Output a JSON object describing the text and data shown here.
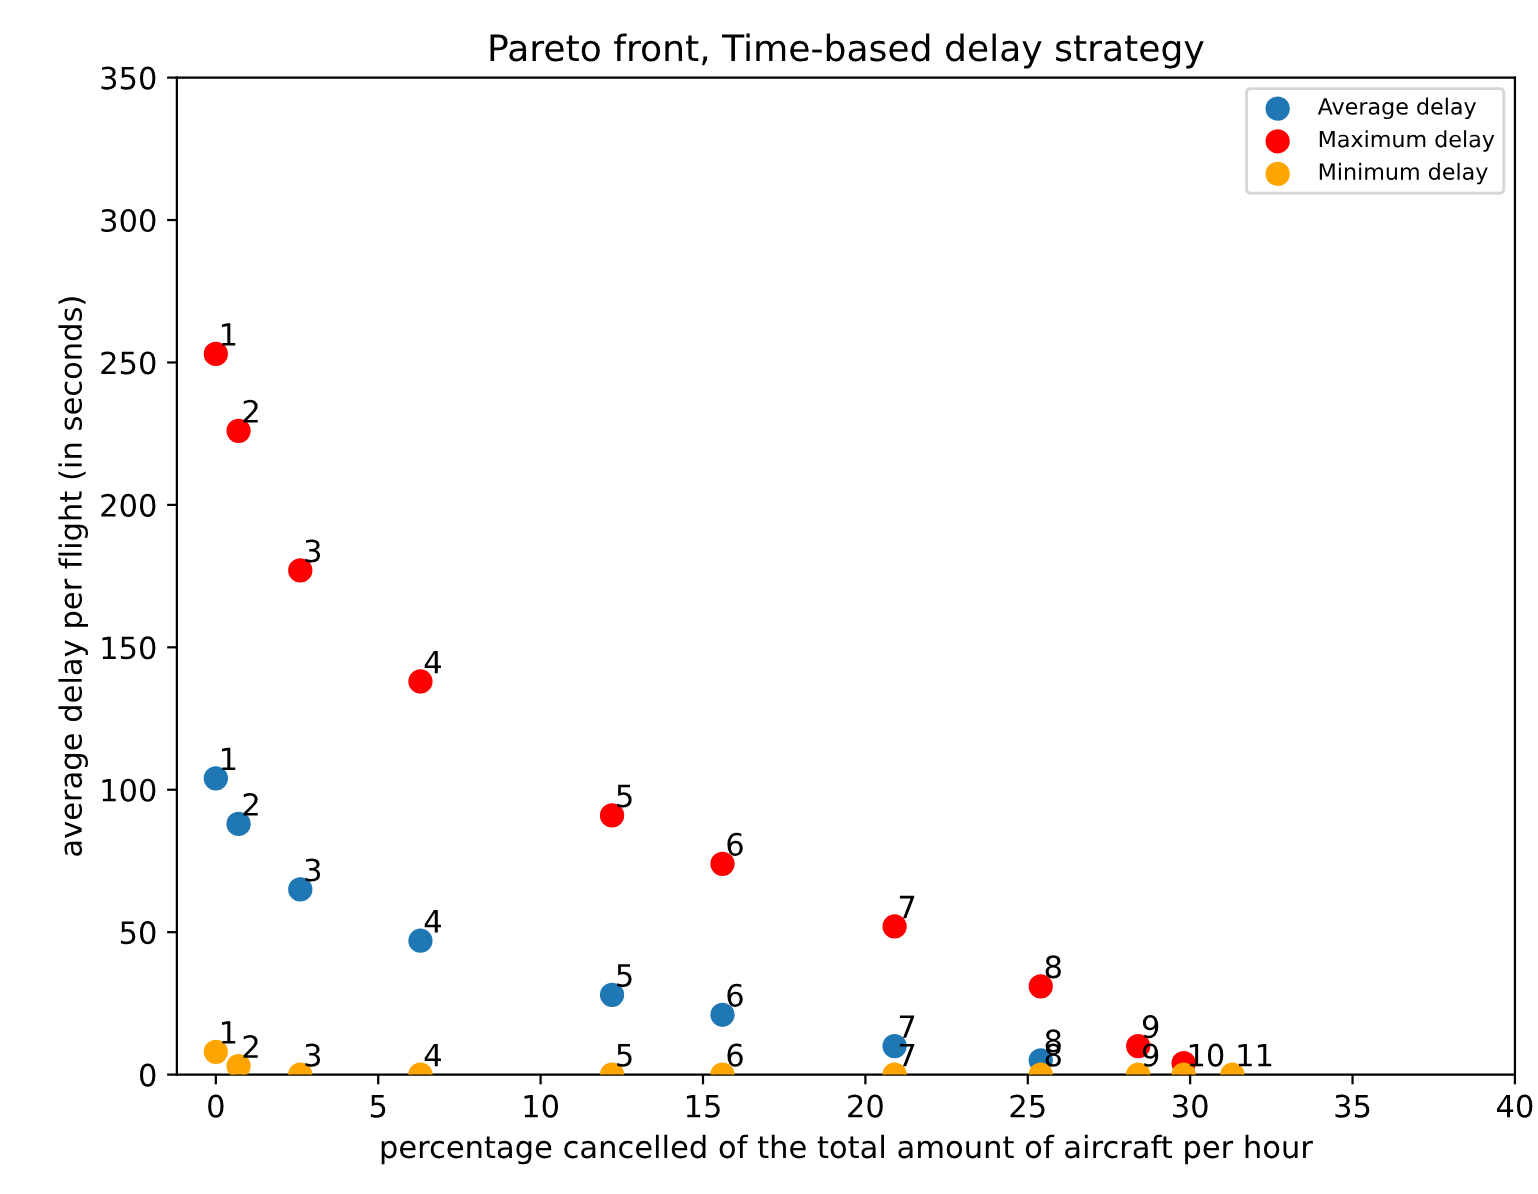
{
  "chart_data": {
    "type": "scatter",
    "title": "Pareto front, Time-based delay strategy",
    "xlabel": "percentage cancelled of the total amount of aircraft per hour",
    "ylabel": "average delay per flight (in seconds)",
    "x": [
      0,
      0.7,
      2.6,
      6.3,
      12.2,
      15.6,
      20.9,
      25.4,
      28.4,
      29.8,
      31.3
    ],
    "series": [
      {
        "name": "Average delay",
        "color": "#1f77b4",
        "values": [
          104,
          88,
          65,
          47,
          28,
          21,
          10,
          5,
          null,
          null,
          null
        ]
      },
      {
        "name": "Maximum delay",
        "color": "#ff0000",
        "values": [
          253,
          226,
          177,
          138,
          91,
          74,
          52,
          31,
          10,
          4,
          null
        ]
      },
      {
        "name": "Minimum delay",
        "color": "#ffa500",
        "values": [
          8,
          3,
          0,
          0,
          0,
          0,
          0,
          0,
          0,
          0,
          0
        ]
      }
    ],
    "annotations": [
      {
        "text": "1",
        "x": 0,
        "y": 104
      },
      {
        "text": "2",
        "x": 0.7,
        "y": 88
      },
      {
        "text": "3",
        "x": 2.6,
        "y": 65
      },
      {
        "text": "4",
        "x": 6.3,
        "y": 47
      },
      {
        "text": "5",
        "x": 12.2,
        "y": 28
      },
      {
        "text": "6",
        "x": 15.6,
        "y": 21
      },
      {
        "text": "7",
        "x": 20.9,
        "y": 10
      },
      {
        "text": "8",
        "x": 25.4,
        "y": 5
      },
      {
        "text": "1",
        "x": 0,
        "y": 253
      },
      {
        "text": "2",
        "x": 0.7,
        "y": 226
      },
      {
        "text": "3",
        "x": 2.6,
        "y": 177
      },
      {
        "text": "4",
        "x": 6.3,
        "y": 138
      },
      {
        "text": "5",
        "x": 12.2,
        "y": 91
      },
      {
        "text": "6",
        "x": 15.6,
        "y": 74
      },
      {
        "text": "7",
        "x": 20.9,
        "y": 52
      },
      {
        "text": "8",
        "x": 25.4,
        "y": 31
      },
      {
        "text": "9",
        "x": 28.4,
        "y": 10
      },
      {
        "text": "1",
        "x": 0,
        "y": 8
      },
      {
        "text": "2",
        "x": 0.7,
        "y": 3
      },
      {
        "text": "3",
        "x": 2.6,
        "y": 0
      },
      {
        "text": "4",
        "x": 6.3,
        "y": 0
      },
      {
        "text": "5",
        "x": 12.2,
        "y": 0
      },
      {
        "text": "6",
        "x": 15.6,
        "y": 0
      },
      {
        "text": "7",
        "x": 20.9,
        "y": 0
      },
      {
        "text": "8",
        "x": 25.4,
        "y": 0
      },
      {
        "text": "9",
        "x": 28.4,
        "y": 0
      },
      {
        "text": "10",
        "x": 29.8,
        "y": 0
      },
      {
        "text": "11",
        "x": 31.3,
        "y": 0
      }
    ],
    "xlim": [
      -1.2,
      40
    ],
    "xticks": [
      0,
      5,
      10,
      15,
      20,
      25,
      30,
      35,
      40
    ],
    "ylim": [
      0,
      350
    ],
    "yticks": [
      0,
      50,
      100,
      150,
      200,
      250,
      300,
      350
    ],
    "legend": "top right",
    "grid": false,
    "marker": "circle"
  }
}
